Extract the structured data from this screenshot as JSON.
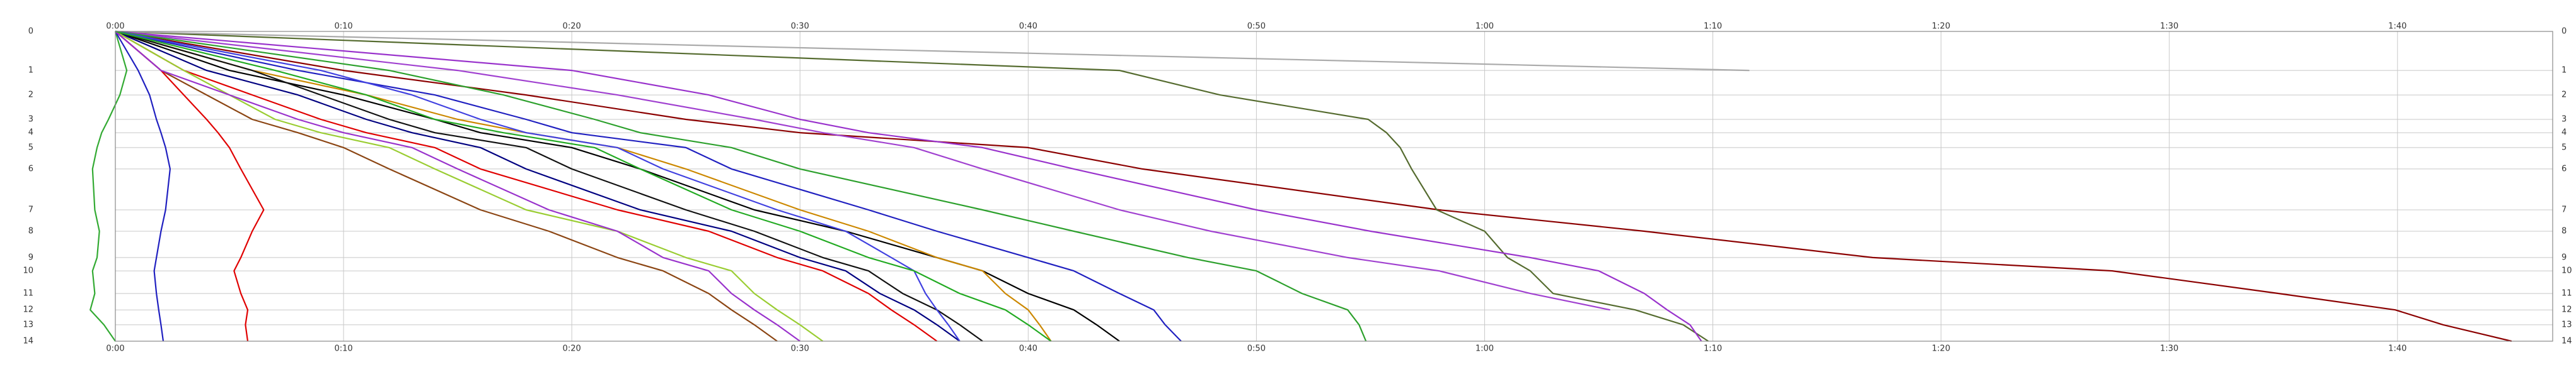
{
  "chart_data": {
    "type": "line",
    "xlim": [
      0,
      106.8
    ],
    "xticks": [
      {
        "value": 0,
        "label": "0:00"
      },
      {
        "value": 10,
        "label": "0:10"
      },
      {
        "value": 20,
        "label": "0:20"
      },
      {
        "value": 30,
        "label": "0:30"
      },
      {
        "value": 40,
        "label": "0:40"
      },
      {
        "value": 50,
        "label": "0:50"
      },
      {
        "value": 60,
        "label": "1:00"
      },
      {
        "value": 70,
        "label": "1:10"
      },
      {
        "value": 80,
        "label": "1:20"
      },
      {
        "value": 90,
        "label": "1:30"
      },
      {
        "value": 100,
        "label": "1:40"
      }
    ],
    "ylim": [
      0,
      14
    ],
    "yticks": [
      0,
      1,
      2,
      3,
      4,
      5,
      6,
      7,
      8,
      9,
      10,
      11,
      12,
      13,
      14
    ],
    "grid": true,
    "series": [
      {
        "color": "#8b0000",
        "x": [
          0,
          10,
          18,
          25,
          30,
          40,
          45,
          58,
          67,
          77,
          87.5,
          94.8,
          99.9,
          102,
          105
        ],
        "values": [
          0,
          1,
          2,
          3,
          4,
          5,
          6,
          7,
          8,
          9,
          10,
          11,
          12,
          13,
          14
        ]
      },
      {
        "color": "#556b2f",
        "x": [
          0,
          44,
          48.4,
          54.9,
          55.7,
          56.3,
          56.8,
          57.9,
          60,
          61,
          62,
          63,
          66.6,
          68.7,
          69.8
        ],
        "values": [
          0,
          1,
          2,
          3,
          4,
          5,
          6,
          7,
          8,
          9,
          10,
          11,
          12,
          13,
          14
        ]
      },
      {
        "color": "#aaaaaa",
        "x": [
          0,
          71.6
        ],
        "values": [
          0,
          1
        ]
      },
      {
        "color": "#9932cc",
        "x": [
          0,
          20,
          26,
          30,
          33,
          38,
          42,
          50,
          55,
          62,
          65,
          67,
          68,
          69,
          69.5
        ],
        "values": [
          0,
          1,
          2,
          3,
          4,
          5,
          6,
          7,
          8,
          9,
          10,
          11,
          12,
          13,
          14
        ]
      },
      {
        "color": "#a040d0",
        "x": [
          0,
          15,
          22,
          28,
          31,
          35,
          38,
          44,
          48,
          54,
          58,
          62,
          65.5
        ],
        "values": [
          0,
          1,
          2,
          3,
          4,
          5,
          6,
          7,
          8,
          9,
          10,
          11,
          12
        ]
      },
      {
        "color": "#2ca02c",
        "x": [
          0,
          12,
          17,
          21,
          23,
          27,
          30,
          38,
          42,
          47,
          50,
          52,
          54,
          54.5,
          54.8
        ],
        "values": [
          0,
          1,
          2,
          3,
          4,
          5,
          6,
          7,
          8,
          9,
          10,
          11,
          12,
          13,
          14
        ]
      },
      {
        "color": "#2020c0",
        "x": [
          0,
          8,
          14,
          18,
          20,
          25,
          27,
          33,
          36,
          40,
          42,
          44,
          45.5,
          46,
          46.7
        ],
        "values": [
          0,
          1,
          2,
          3,
          4,
          5,
          6,
          7,
          8,
          9,
          10,
          11,
          12,
          13,
          14
        ]
      },
      {
        "color": "#000000",
        "x": [
          0,
          5,
          10,
          14,
          16,
          20,
          23,
          28,
          32,
          36,
          38,
          40,
          42,
          43,
          44
        ],
        "values": [
          0,
          1,
          2,
          3,
          4,
          5,
          6,
          7,
          8,
          9,
          10,
          11,
          12,
          13,
          14
        ]
      },
      {
        "color": "#cc8800",
        "x": [
          0,
          6,
          11,
          15,
          18,
          22,
          25,
          30,
          33,
          36,
          38,
          39,
          40,
          40.5,
          41
        ],
        "values": [
          0,
          1,
          2,
          3,
          4,
          5,
          6,
          7,
          8,
          9,
          10,
          11,
          12,
          13,
          14
        ]
      },
      {
        "color": "#e00000",
        "x": [
          0,
          3,
          6,
          9,
          11,
          14,
          16,
          22,
          26,
          29,
          31,
          33,
          34,
          35,
          36
        ],
        "values": [
          0,
          1,
          2,
          3,
          4,
          5,
          6,
          7,
          8,
          9,
          10,
          11,
          12,
          13,
          14
        ]
      },
      {
        "color": "#000080",
        "x": [
          0,
          4,
          8,
          11,
          13,
          16,
          18,
          23,
          27,
          30,
          32,
          33.5,
          35,
          36,
          37
        ],
        "values": [
          0,
          1,
          2,
          3,
          4,
          5,
          6,
          7,
          8,
          9,
          10,
          11,
          12,
          13,
          14
        ]
      },
      {
        "color": "#9acd32",
        "x": [
          0,
          3,
          5,
          7,
          9,
          12,
          14,
          18,
          22,
          25,
          27,
          28,
          29,
          30,
          31
        ],
        "values": [
          0,
          1,
          2,
          3,
          4,
          5,
          6,
          7,
          8,
          9,
          10,
          11,
          12,
          13,
          14
        ]
      },
      {
        "color": "#8b4513",
        "x": [
          0,
          2,
          4,
          6,
          8,
          10,
          12,
          16,
          19,
          22,
          24,
          26,
          27,
          28,
          29
        ],
        "values": [
          0,
          1,
          2,
          3,
          4,
          5,
          6,
          7,
          8,
          9,
          10,
          11,
          12,
          13,
          14
        ]
      },
      {
        "color": "#33aa33",
        "x": [
          0,
          0.5,
          0.2,
          -0.3,
          -0.6,
          -0.8,
          -1,
          -0.9,
          -0.7,
          -0.8,
          -1,
          -0.9,
          -1.1,
          -0.5,
          0
        ],
        "values": [
          0,
          1,
          2,
          3,
          4,
          5,
          6,
          7,
          8,
          9,
          10,
          11,
          12,
          13,
          14
        ]
      },
      {
        "color": "#2020c0",
        "x": [
          0,
          1,
          1.5,
          1.8,
          2,
          2.2,
          2.4,
          2.2,
          2,
          1.8,
          1.7,
          1.8,
          1.9,
          2,
          2.1
        ],
        "values": [
          0,
          1,
          2,
          3,
          4,
          5,
          6,
          7,
          8,
          9,
          10,
          11,
          12,
          13,
          14
        ]
      },
      {
        "color": "#e00000",
        "x": [
          0,
          2,
          3,
          4,
          4.5,
          5,
          5.5,
          6.5,
          6,
          5.5,
          5.2,
          5.5,
          5.8,
          5.7,
          5.8
        ],
        "values": [
          0,
          1,
          2,
          3,
          4,
          5,
          6,
          7,
          8,
          9,
          10,
          11,
          12,
          13,
          14
        ]
      },
      {
        "color": "#111111",
        "x": [
          0,
          6,
          9,
          12,
          14,
          18,
          20,
          25,
          28,
          31,
          33,
          34.5,
          36,
          37,
          38
        ],
        "values": [
          0,
          1,
          2,
          3,
          4,
          5,
          6,
          7,
          8,
          9,
          10,
          11,
          12,
          13,
          14
        ]
      },
      {
        "color": "#9932cc",
        "x": [
          0,
          2,
          5,
          8,
          10,
          13,
          15,
          19,
          22,
          24,
          26,
          27,
          28,
          29,
          30
        ],
        "values": [
          0,
          1,
          2,
          3,
          4,
          5,
          6,
          7,
          8,
          9,
          10,
          11,
          12,
          13,
          14
        ]
      },
      {
        "color": "#4040e0",
        "x": [
          0,
          9,
          13,
          16,
          18,
          22,
          24,
          29,
          32,
          34,
          35,
          35.5,
          36,
          36.5,
          37
        ],
        "values": [
          0,
          1,
          2,
          3,
          4,
          5,
          6,
          7,
          8,
          9,
          10,
          11,
          12,
          13,
          14
        ]
      },
      {
        "color": "#22aa22",
        "x": [
          0,
          7,
          11,
          14,
          17,
          21,
          23,
          27,
          30,
          33,
          35,
          37,
          39,
          40,
          41
        ],
        "values": [
          0,
          1,
          2,
          3,
          4,
          5,
          6,
          7,
          8,
          9,
          10,
          11,
          12,
          13,
          14
        ]
      }
    ]
  }
}
